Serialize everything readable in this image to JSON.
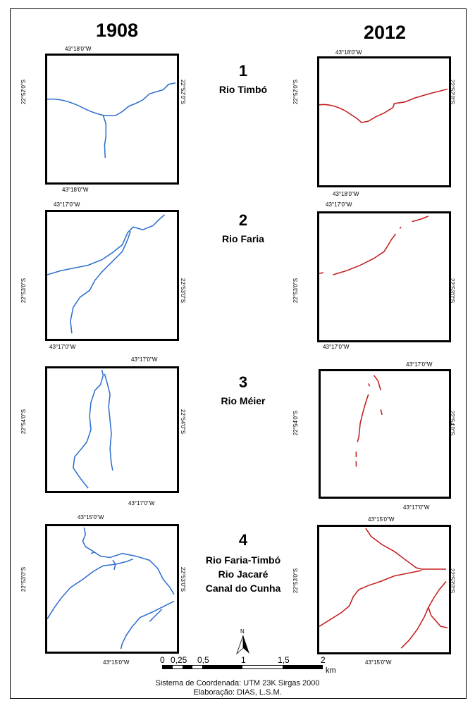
{
  "columns": {
    "left": "1908",
    "right": "2012"
  },
  "colors": {
    "historic": "#2f6fd0",
    "current": "#c41e1e",
    "frame": "#000000"
  },
  "rows": [
    {
      "number": "1",
      "names": [
        "Rio Timbó"
      ],
      "left": {
        "top_lon": "43°18'0\"W",
        "bottom_lon": "43°18'0\"W",
        "left_lat": "22°52'0\"S",
        "right_lat": "22°52'0\"S"
      },
      "right": {
        "top_lon": "43°18'0\"W",
        "bottom_lon": "43°18'0\"W",
        "left_lat": "22°52'0\"S",
        "right_lat": "22°52'0\"S"
      }
    },
    {
      "number": "2",
      "names": [
        "Rio Faria"
      ],
      "left": {
        "top_lon": "43°17'0\"W",
        "bottom_lon": "43°17'0\"W",
        "left_lat": "22°53'0\"S",
        "right_lat": "22°53'0\"S"
      },
      "right": {
        "top_lon": "43°17'0\"W",
        "bottom_lon": "43°17'0\"W",
        "left_lat": "22°53'0\"S",
        "right_lat": "22°53'0\"S"
      }
    },
    {
      "number": "3",
      "names": [
        "Rio Méier"
      ],
      "left": {
        "top_lon": "43°17'0\"W",
        "bottom_lon": "43°17'0\"W",
        "left_lat": "22°54'0\"S",
        "right_lat": "22°54'0\"S"
      },
      "right": {
        "top_lon": "43°17'0\"W",
        "bottom_lon": "43°17'0\"W",
        "left_lat": "22°54'0\"S",
        "right_lat": "22°54'0\"S"
      }
    },
    {
      "number": "4",
      "names": [
        "Rio Faria-Timbó",
        "Rio Jacaré",
        "Canal do Cunha"
      ],
      "left": {
        "top_lon": "43°15'0\"W",
        "bottom_lon": "43°15'0\"W",
        "left_lat": "22°53'0\"S",
        "right_lat": "22°53'0\"S"
      },
      "right": {
        "top_lon": "43°15'0\"W",
        "bottom_lon": "43°15'0\"W",
        "left_lat": "22°53'0\"S",
        "right_lat": "22°53'0\"S"
      }
    }
  ],
  "north_arrow": {
    "label": "N",
    "icon": "north-arrow-icon"
  },
  "scale_bar": {
    "labels": [
      "0",
      "0,25",
      "0,5",
      "1",
      "1,5",
      "2"
    ],
    "unit": "km"
  },
  "footer": {
    "coordinate_system": "Sistema de Coordenada: UTM 23K Sirgas 2000",
    "credits": "Elaboração: DIAS, L.S.M."
  }
}
